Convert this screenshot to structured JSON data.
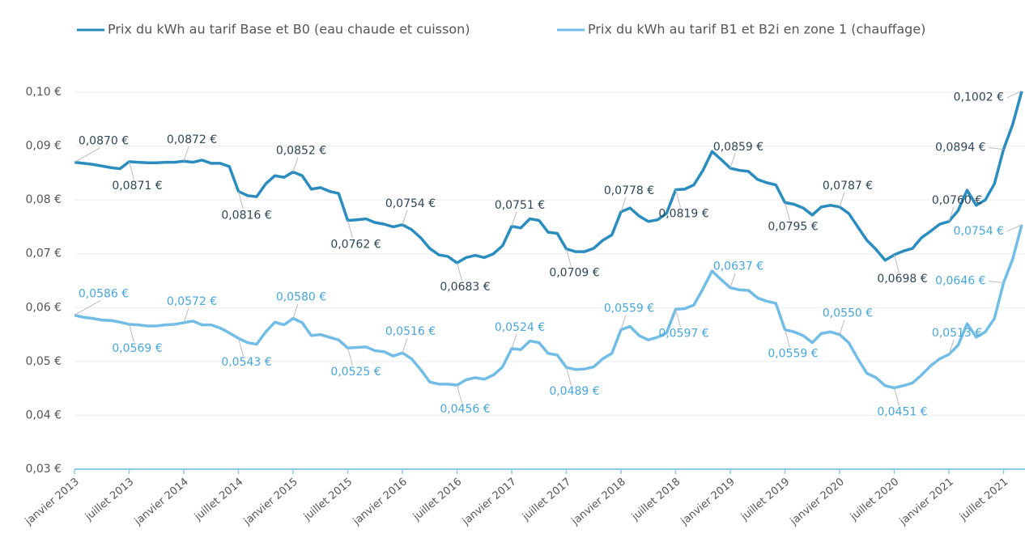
{
  "chart_data": {
    "type": "line",
    "categories": [
      "janvier 2013",
      null,
      null,
      null,
      null,
      null,
      "juillet 2013",
      null,
      null,
      null,
      null,
      null,
      "janvier 2014",
      null,
      null,
      null,
      null,
      null,
      "juillet 2014",
      null,
      null,
      null,
      null,
      null,
      "janvier 2015",
      null,
      null,
      null,
      null,
      null,
      "juillet 2015",
      null,
      null,
      null,
      null,
      null,
      "janvier 2016",
      null,
      null,
      null,
      null,
      null,
      "juillet 2016",
      null,
      null,
      null,
      null,
      null,
      "janvier 2017",
      null,
      null,
      null,
      null,
      null,
      "juillet 2017",
      null,
      null,
      null,
      null,
      null,
      "janvier 2018",
      null,
      null,
      null,
      null,
      null,
      "juillet 2018",
      null,
      null,
      null,
      null,
      null,
      "janvier 2019",
      null,
      null,
      null,
      null,
      null,
      "juillet 2019",
      null,
      null,
      null,
      null,
      null,
      "janvier 2020",
      null,
      null,
      null,
      null,
      null,
      "juillet 2020",
      null,
      null,
      null,
      null,
      null,
      "janvier 2021",
      null,
      null,
      null,
      null,
      null,
      "juillet 2021",
      null,
      null
    ],
    "series": [
      {
        "name": "Prix du kWh au tarif Base et B0 (eau chaude et cuisson)",
        "color": "#2b8cbe",
        "label_color": "#2f4756",
        "values": [
          0.087,
          0.0868,
          0.0866,
          0.0863,
          0.086,
          0.0858,
          0.0871,
          0.087,
          0.0869,
          0.0869,
          0.087,
          0.087,
          0.0872,
          0.087,
          0.0874,
          0.0868,
          0.0868,
          0.0862,
          0.0816,
          0.0808,
          0.0806,
          0.083,
          0.0845,
          0.0842,
          0.0852,
          0.0845,
          0.082,
          0.0823,
          0.0816,
          0.0812,
          0.0762,
          0.0763,
          0.0765,
          0.0758,
          0.0755,
          0.075,
          0.0754,
          0.0745,
          0.073,
          0.071,
          0.0698,
          0.0695,
          0.0683,
          0.0693,
          0.0697,
          0.0693,
          0.07,
          0.0715,
          0.0751,
          0.0748,
          0.0765,
          0.0762,
          0.074,
          0.0738,
          0.0709,
          0.0704,
          0.0704,
          0.071,
          0.0725,
          0.0735,
          0.0778,
          0.0785,
          0.077,
          0.076,
          0.0763,
          0.0775,
          0.0819,
          0.082,
          0.0828,
          0.0855,
          0.089,
          0.0875,
          0.0859,
          0.0855,
          0.0853,
          0.0838,
          0.0832,
          0.0828,
          0.0795,
          0.0792,
          0.0785,
          0.0772,
          0.0787,
          0.079,
          0.0787,
          0.0775,
          0.075,
          0.0725,
          0.0708,
          0.0688,
          0.0698,
          0.0705,
          0.071,
          0.073,
          0.0742,
          0.0755,
          0.076,
          0.078,
          0.0818,
          0.079,
          0.08,
          0.083,
          0.0894,
          0.094,
          0.1002
        ],
        "value_labels": [
          "0,0870 €",
          null,
          null,
          null,
          null,
          null,
          "0,0871 €",
          null,
          null,
          null,
          null,
          null,
          "0,0872 €",
          null,
          null,
          null,
          null,
          null,
          "0,0816 €",
          null,
          null,
          null,
          null,
          null,
          "0,0852 €",
          null,
          null,
          null,
          null,
          null,
          "0,0762 €",
          null,
          null,
          null,
          null,
          null,
          "0,0754 €",
          null,
          null,
          null,
          null,
          null,
          "0,0683 €",
          null,
          null,
          null,
          null,
          null,
          "0,0751 €",
          null,
          null,
          null,
          null,
          null,
          "0,0709 €",
          null,
          null,
          null,
          null,
          null,
          "0,0778 €",
          null,
          null,
          null,
          null,
          null,
          "0,0819 €",
          null,
          null,
          null,
          null,
          null,
          "0,0859 €",
          null,
          null,
          null,
          null,
          null,
          "0,0795 €",
          null,
          null,
          null,
          null,
          null,
          "0,0787 €",
          null,
          null,
          null,
          null,
          null,
          "0,0698 €",
          null,
          null,
          null,
          null,
          null,
          "0,0760 €",
          null,
          null,
          null,
          null,
          null,
          "0,0894 €",
          null,
          "0,1002 €"
        ]
      },
      {
        "name": "Prix du kWh au tarif B1 et B2i en zone 1 (chauffage)",
        "color": "#72bde6",
        "label_color": "#4aa6d8",
        "values": [
          0.0586,
          0.0582,
          0.058,
          0.0577,
          0.0576,
          0.0573,
          0.0569,
          0.0568,
          0.0566,
          0.0566,
          0.0568,
          0.0569,
          0.0572,
          0.0575,
          0.0568,
          0.0568,
          0.0562,
          0.0553,
          0.0543,
          0.0535,
          0.0532,
          0.0555,
          0.0573,
          0.0568,
          0.058,
          0.0572,
          0.0548,
          0.055,
          0.0545,
          0.054,
          0.0525,
          0.0526,
          0.0527,
          0.052,
          0.0518,
          0.051,
          0.0516,
          0.0505,
          0.0485,
          0.0462,
          0.0458,
          0.0458,
          0.0456,
          0.0466,
          0.047,
          0.0467,
          0.0475,
          0.049,
          0.0524,
          0.0522,
          0.0538,
          0.0535,
          0.0515,
          0.0512,
          0.0489,
          0.0485,
          0.0486,
          0.049,
          0.0505,
          0.0515,
          0.0559,
          0.0565,
          0.0548,
          0.054,
          0.0545,
          0.0553,
          0.0597,
          0.0598,
          0.0605,
          0.0635,
          0.0668,
          0.0652,
          0.0637,
          0.0633,
          0.0632,
          0.0618,
          0.0612,
          0.0608,
          0.0559,
          0.0555,
          0.0548,
          0.0535,
          0.0552,
          0.0555,
          0.055,
          0.0535,
          0.0505,
          0.0478,
          0.047,
          0.0455,
          0.0451,
          0.0455,
          0.046,
          0.0475,
          0.0492,
          0.0505,
          0.0513,
          0.053,
          0.057,
          0.0545,
          0.0555,
          0.058,
          0.0646,
          0.069,
          0.0754
        ],
        "value_labels": [
          "0,0586 €",
          null,
          null,
          null,
          null,
          null,
          "0,0569 €",
          null,
          null,
          null,
          null,
          null,
          "0,0572 €",
          null,
          null,
          null,
          null,
          null,
          "0,0543 €",
          null,
          null,
          null,
          null,
          null,
          "0,0580 €",
          null,
          null,
          null,
          null,
          null,
          "0,0525 €",
          null,
          null,
          null,
          null,
          null,
          "0,0516 €",
          null,
          null,
          null,
          null,
          null,
          "0,0456 €",
          null,
          null,
          null,
          null,
          null,
          "0,0524 €",
          null,
          null,
          null,
          null,
          null,
          "0,0489 €",
          null,
          null,
          null,
          null,
          null,
          "0,0559 €",
          null,
          null,
          null,
          null,
          null,
          "0,0597 €",
          null,
          null,
          null,
          null,
          null,
          "0,0637 €",
          null,
          null,
          null,
          null,
          null,
          "0,0559 €",
          null,
          null,
          null,
          null,
          null,
          "0,0550 €",
          null,
          null,
          null,
          null,
          null,
          "0,0451 €",
          null,
          null,
          null,
          null,
          null,
          "0,0513 €",
          null,
          null,
          null,
          null,
          null,
          "0,0646 €",
          null,
          "0,0754 €"
        ]
      }
    ],
    "ylim": [
      0.03,
      0.1025
    ],
    "yticks": [
      {
        "value": 0.03,
        "label": "0,03 €"
      },
      {
        "value": 0.04,
        "label": "0,04 €"
      },
      {
        "value": 0.05,
        "label": "0,05 €"
      },
      {
        "value": 0.06,
        "label": "0,06 €"
      },
      {
        "value": 0.07,
        "label": "0,07 €"
      },
      {
        "value": 0.08,
        "label": "0,08 €"
      },
      {
        "value": 0.09,
        "label": "0,09 €"
      },
      {
        "value": 0.1,
        "label": "0,10 €"
      }
    ],
    "grid": true,
    "legend": "top"
  }
}
